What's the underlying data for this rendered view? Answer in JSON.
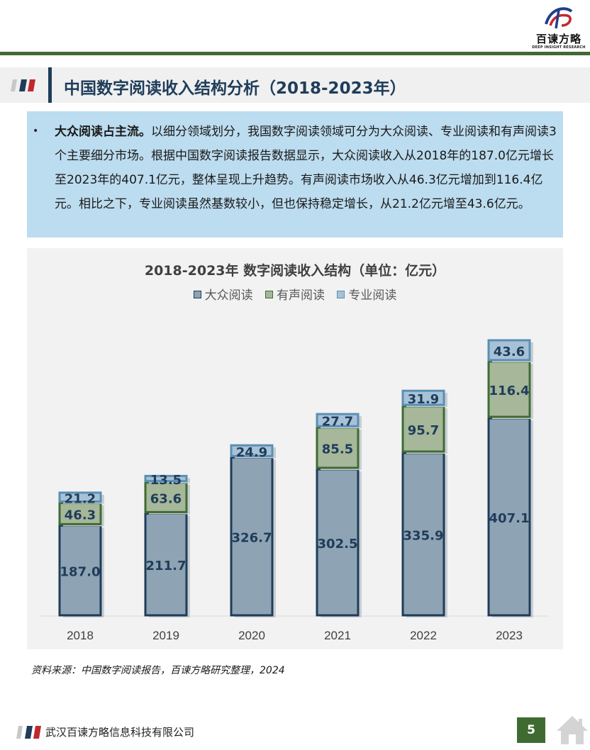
{
  "header": {
    "brand_name": "百谏方略",
    "brand_sub": "DEEP INSIGHT RESEARCH"
  },
  "section": {
    "title": "中国数字阅读收入结构分析（2018-2023年）"
  },
  "summary": {
    "bullet": "•",
    "lead": "大众阅读占主流。",
    "body": "以细分领域划分，我国数字阅读领域可分为大众阅读、专业阅读和有声阅读3个主要细分市场。根据中国数字阅读报告数据显示，大众阅读收入从2018年的187.0亿元增长至2023年的407.1亿元，整体呈现上升趋势。有声阅读市场收入从46.3亿元增加到116.4亿元。相比之下，专业阅读虽然基数较小，但也保持稳定增长，从21.2亿元增至43.6亿元。"
  },
  "chart_data": {
    "type": "bar",
    "stacked": true,
    "title": "2018-2023年 数字阅读收入结构（单位：亿元）",
    "legend_position": "top",
    "categories": [
      "2018",
      "2019",
      "2020",
      "2021",
      "2022",
      "2023"
    ],
    "series": [
      {
        "name": "大众阅读",
        "values": [
          187.0,
          211.7,
          326.7,
          302.5,
          335.9,
          407.1
        ],
        "labels": [
          "187.0",
          "211.7",
          "326.7",
          "302.5",
          "335.9",
          "407.1"
        ],
        "fill": "#8ea3b3",
        "stroke": "#1f3d5a"
      },
      {
        "name": "有声阅读",
        "values": [
          46.3,
          63.6,
          null,
          85.5,
          95.7,
          116.4
        ],
        "labels": [
          "46.3",
          "63.6",
          "",
          "85.5",
          "95.7",
          "116.4"
        ],
        "fill": "#a6b79a",
        "stroke": "#3f6b33"
      },
      {
        "name": "专业阅读",
        "values": [
          21.2,
          13.5,
          24.9,
          27.7,
          31.9,
          43.6
        ],
        "labels": [
          "21.2",
          "13.5",
          "24.9",
          "27.7",
          "31.9",
          "43.6"
        ],
        "fill": "#a7c2d6",
        "stroke": "#5a8fb5"
      }
    ],
    "grid": false,
    "label_color": "#1f3d5a"
  },
  "source": {
    "text": "资料来源：中国数字阅读报告，百谏方略研究整理，2024"
  },
  "footer": {
    "company": "武汉百谏方略信息科技有限公司",
    "page_number": "5"
  },
  "colors": {
    "brand_green": "#3f6b33",
    "navy": "#1f3d5a",
    "summary_bg": "#bcdcef",
    "flag_red": "#c0282d"
  },
  "icons": {
    "logo": "brand-logo-icon",
    "title_flags": "flag-stripes-icon",
    "home": "home-icon"
  }
}
